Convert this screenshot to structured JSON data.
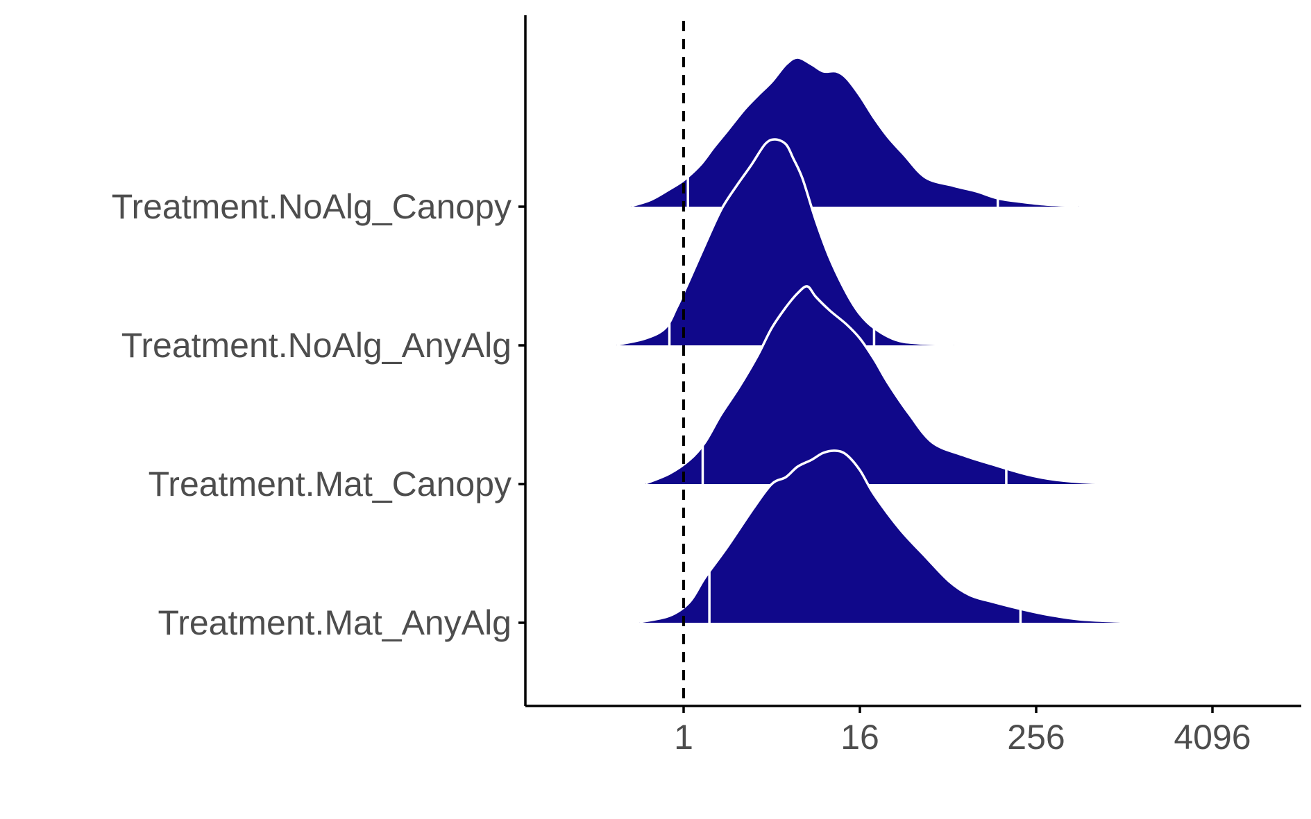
{
  "chart_data": {
    "type": "ridgeline",
    "title": "",
    "xlabel": "",
    "ylabel": "",
    "x_scale": "log2",
    "x_ticks": [
      1,
      16,
      256,
      4096
    ],
    "x_tick_labels": [
      "1",
      "16",
      "256",
      "4096"
    ],
    "xlim": [
      0.0625,
      32768
    ],
    "reference_line": {
      "x": 1,
      "style": "dashed"
    },
    "fill_color": "#10088a",
    "outline_color": "#ffffff",
    "grid": false,
    "legend": "none",
    "categories": [
      "Treatment.NoAlg_Canopy",
      "Treatment.NoAlg_AnyAlg",
      "Treatment.Mat_Canopy",
      "Treatment.Mat_AnyAlg"
    ],
    "series": [
      {
        "category": "Treatment.NoAlg_Canopy",
        "quantiles": {
          "q025": 1.07,
          "q975": 140
        },
        "density": [
          [
            0.44,
            0.01
          ],
          [
            0.6,
            0.1
          ],
          [
            0.8,
            0.25
          ],
          [
            1.0,
            0.38
          ],
          [
            1.3,
            0.6
          ],
          [
            1.6,
            0.85
          ],
          [
            2.0,
            1.1
          ],
          [
            2.6,
            1.4
          ],
          [
            3.2,
            1.6
          ],
          [
            4.0,
            1.8
          ],
          [
            5.0,
            2.05
          ],
          [
            6.0,
            2.15
          ],
          [
            7.5,
            2.05
          ],
          [
            9.0,
            1.95
          ],
          [
            11.0,
            1.95
          ],
          [
            13.0,
            1.85
          ],
          [
            16.0,
            1.6
          ],
          [
            20.0,
            1.28
          ],
          [
            25.0,
            1.0
          ],
          [
            32.0,
            0.75
          ],
          [
            45.0,
            0.42
          ],
          [
            70.0,
            0.3
          ],
          [
            100.0,
            0.22
          ],
          [
            140.0,
            0.12
          ],
          [
            200.0,
            0.07
          ],
          [
            300.0,
            0.03
          ],
          [
            500.0,
            0.01
          ]
        ]
      },
      {
        "category": "Treatment.NoAlg_AnyAlg",
        "quantiles": {
          "q025": 0.8,
          "q975": 20
        },
        "density": [
          [
            0.35,
            0.01
          ],
          [
            0.55,
            0.1
          ],
          [
            0.75,
            0.25
          ],
          [
            0.9,
            0.55
          ],
          [
            1.1,
            0.95
          ],
          [
            1.4,
            1.45
          ],
          [
            1.8,
            1.95
          ],
          [
            2.3,
            2.3
          ],
          [
            2.9,
            2.6
          ],
          [
            3.6,
            2.9
          ],
          [
            4.2,
            2.97
          ],
          [
            5.0,
            2.9
          ],
          [
            5.6,
            2.7
          ],
          [
            6.5,
            2.4
          ],
          [
            8.0,
            1.8
          ],
          [
            10.0,
            1.25
          ],
          [
            13.0,
            0.75
          ],
          [
            16.0,
            0.45
          ],
          [
            20.0,
            0.25
          ],
          [
            28.0,
            0.08
          ],
          [
            40.0,
            0.03
          ],
          [
            70.0,
            0.01
          ]
        ]
      },
      {
        "category": "Treatment.Mat_Canopy",
        "quantiles": {
          "q025": 1.35,
          "q975": 160
        },
        "density": [
          [
            0.55,
            0.01
          ],
          [
            0.8,
            0.15
          ],
          [
            1.1,
            0.35
          ],
          [
            1.4,
            0.6
          ],
          [
            1.8,
            1.0
          ],
          [
            2.4,
            1.4
          ],
          [
            3.2,
            1.85
          ],
          [
            4.0,
            2.25
          ],
          [
            5.0,
            2.55
          ],
          [
            6.0,
            2.75
          ],
          [
            7.0,
            2.85
          ],
          [
            8.0,
            2.7
          ],
          [
            10.0,
            2.5
          ],
          [
            13.0,
            2.3
          ],
          [
            16.0,
            2.1
          ],
          [
            20.0,
            1.8
          ],
          [
            25.0,
            1.45
          ],
          [
            35.0,
            1.0
          ],
          [
            50.0,
            0.6
          ],
          [
            80.0,
            0.42
          ],
          [
            130.0,
            0.28
          ],
          [
            220.0,
            0.14
          ],
          [
            350.0,
            0.06
          ],
          [
            600.0,
            0.02
          ],
          [
            1500.0,
            0.005
          ],
          [
            2500.0,
            0.0
          ]
        ]
      },
      {
        "category": "Treatment.Mat_AnyAlg",
        "quantiles": {
          "q025": 1.5,
          "q975": 200
        },
        "density": [
          [
            0.5,
            0.01
          ],
          [
            0.8,
            0.1
          ],
          [
            1.1,
            0.3
          ],
          [
            1.4,
            0.65
          ],
          [
            2.0,
            1.1
          ],
          [
            3.0,
            1.65
          ],
          [
            4.0,
            2.0
          ],
          [
            5.0,
            2.1
          ],
          [
            6.0,
            2.25
          ],
          [
            7.5,
            2.35
          ],
          [
            9.0,
            2.45
          ],
          [
            11.0,
            2.48
          ],
          [
            13.0,
            2.42
          ],
          [
            16.0,
            2.2
          ],
          [
            20.0,
            1.85
          ],
          [
            30.0,
            1.35
          ],
          [
            45.0,
            0.95
          ],
          [
            65.0,
            0.6
          ],
          [
            90.0,
            0.4
          ],
          [
            130.0,
            0.3
          ],
          [
            200.0,
            0.2
          ],
          [
            300.0,
            0.12
          ],
          [
            500.0,
            0.05
          ],
          [
            900.0,
            0.02
          ],
          [
            1500.0,
            0.005
          ]
        ]
      }
    ]
  }
}
